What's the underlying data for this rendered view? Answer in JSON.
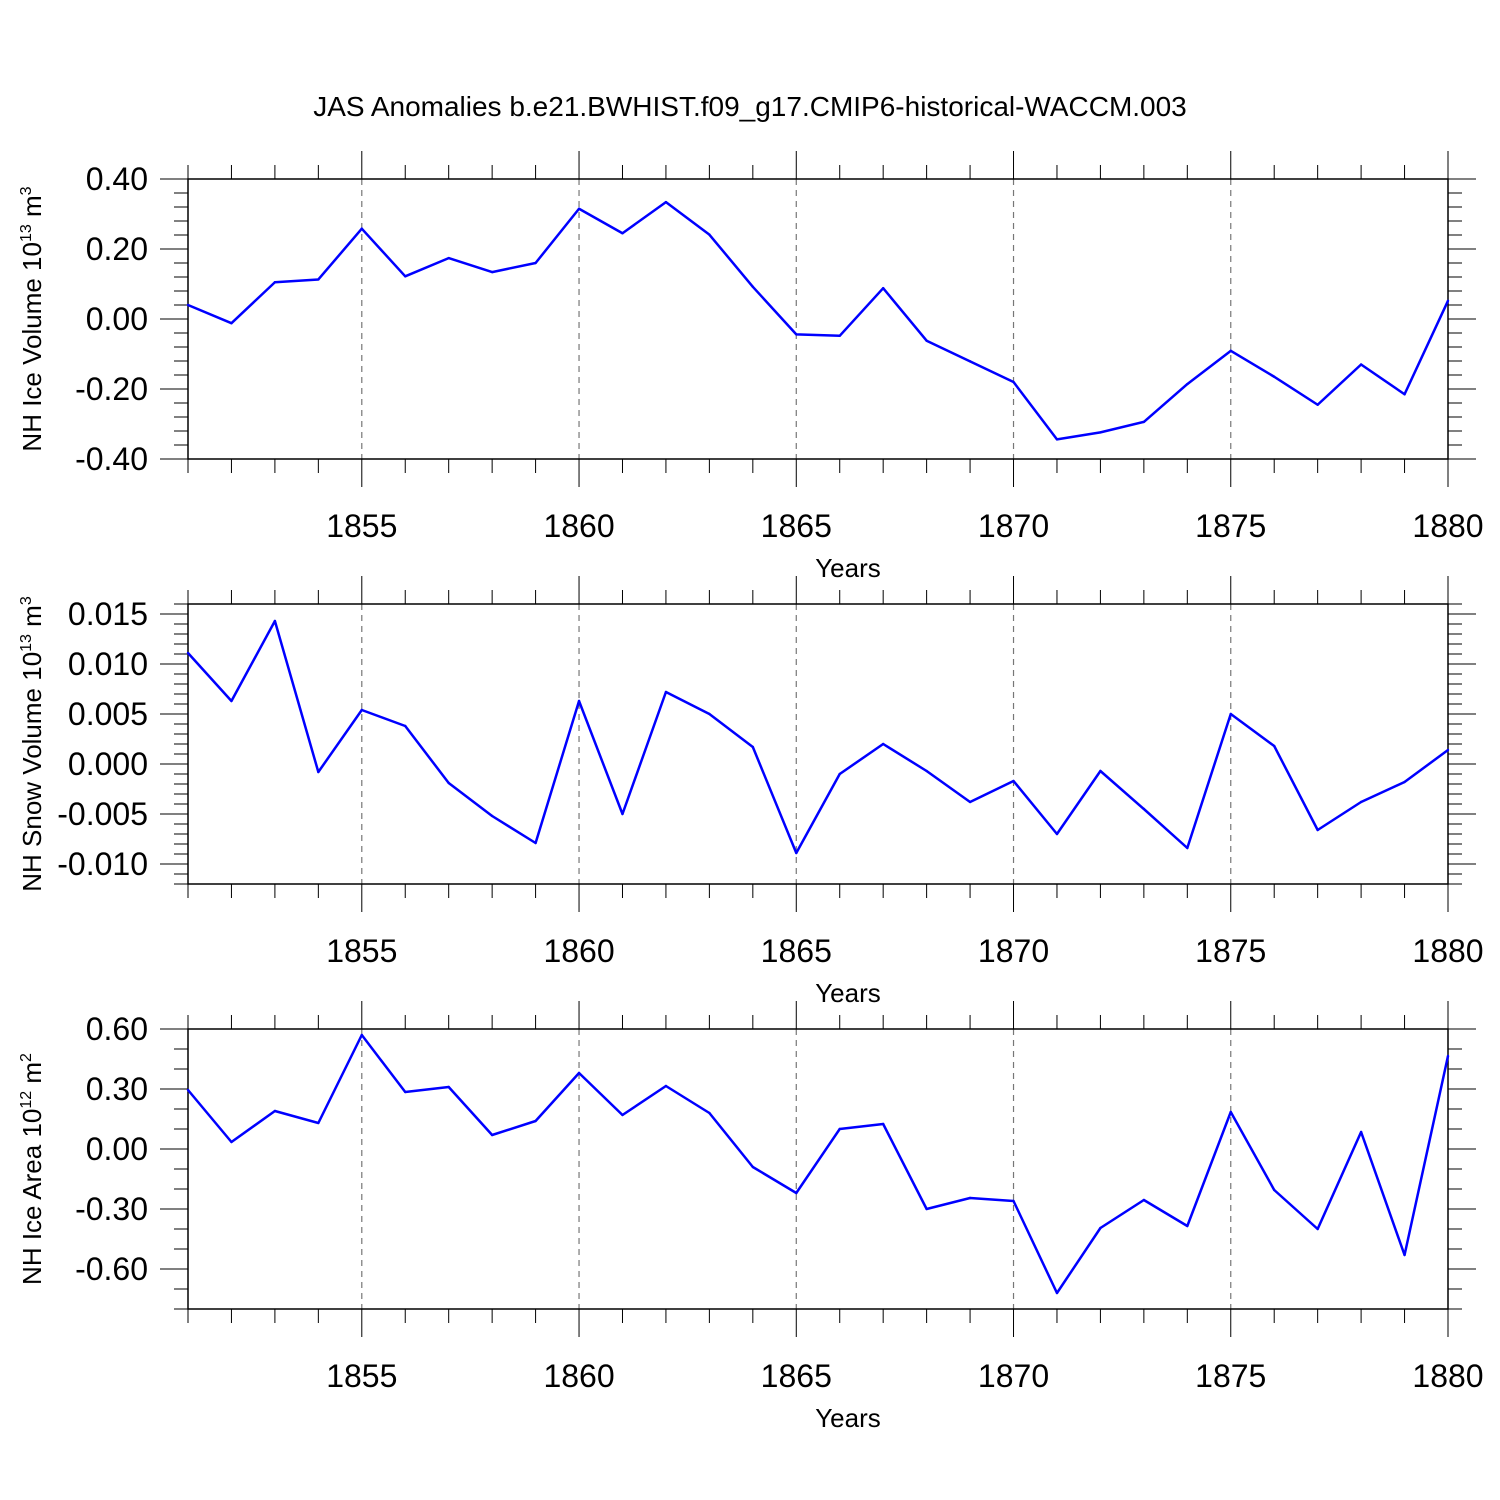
{
  "title": "JAS Anomalies b.e21.BWHIST.f09_g17.CMIP6-historical-WACCM.003",
  "chart_data": [
    {
      "type": "line",
      "ylabel_text": "NH Ice Volume 10",
      "ylabel_exp": "13",
      "ylabel_unit": " m",
      "ylabel_unit_exp": "3",
      "xlabel": "Years",
      "xlim": [
        1851,
        1880
      ],
      "ylim": [
        -0.4,
        0.4
      ],
      "yticks": [
        0.4,
        0.2,
        0.0,
        -0.2,
        -0.4
      ],
      "ytick_labels": [
        "0.40",
        "0.20",
        "0.00",
        "-0.20",
        "-0.40"
      ],
      "yminor": 0.04,
      "xticks": [
        1855,
        1860,
        1865,
        1870,
        1875,
        1880
      ],
      "xtick_labels": [
        "1855",
        "1860",
        "1865",
        "1870",
        "1875",
        "1880"
      ],
      "grid": "dashed vertical at major years",
      "series": [
        {
          "name": "NH Ice Volume",
          "color": "#0000ff",
          "x": [
            1851,
            1852,
            1853,
            1854,
            1855,
            1856,
            1857,
            1858,
            1859,
            1860,
            1861,
            1862,
            1863,
            1864,
            1865,
            1866,
            1867,
            1868,
            1869,
            1870,
            1871,
            1872,
            1873,
            1874,
            1875,
            1876,
            1877,
            1878,
            1879,
            1880
          ],
          "values": [
            0.04,
            -0.012,
            0.105,
            0.113,
            0.258,
            0.122,
            0.174,
            0.134,
            0.16,
            0.315,
            0.245,
            0.334,
            0.241,
            0.092,
            -0.044,
            -0.048,
            0.088,
            -0.062,
            -0.121,
            -0.18,
            -0.344,
            -0.324,
            -0.294,
            -0.186,
            -0.091,
            -0.165,
            -0.245,
            -0.13,
            -0.215,
            0.052
          ]
        }
      ]
    },
    {
      "type": "line",
      "ylabel_text": "NH Snow Volume 10",
      "ylabel_exp": "13",
      "ylabel_unit": " m",
      "ylabel_unit_exp": "3",
      "xlabel": "Years",
      "xlim": [
        1851,
        1880
      ],
      "ylim": [
        -0.012,
        0.016
      ],
      "yticks": [
        0.015,
        0.01,
        0.005,
        0.0,
        -0.005,
        -0.01
      ],
      "ytick_labels": [
        "0.015",
        "0.010",
        "0.005",
        "0.000",
        "-0.005",
        "-0.010"
      ],
      "yminor": 0.001,
      "xticks": [
        1855,
        1860,
        1865,
        1870,
        1875,
        1880
      ],
      "xtick_labels": [
        "1855",
        "1860",
        "1865",
        "1870",
        "1875",
        "1880"
      ],
      "grid": "dashed vertical at major years",
      "series": [
        {
          "name": "NH Snow Volume",
          "color": "#0000ff",
          "x": [
            1851,
            1852,
            1853,
            1854,
            1855,
            1856,
            1857,
            1858,
            1859,
            1860,
            1861,
            1862,
            1863,
            1864,
            1865,
            1866,
            1867,
            1868,
            1869,
            1870,
            1871,
            1872,
            1873,
            1874,
            1875,
            1876,
            1877,
            1878,
            1879,
            1880
          ],
          "values": [
            0.0111,
            0.0063,
            0.0143,
            -0.0008,
            0.0054,
            0.0038,
            -0.0019,
            -0.0052,
            -0.0079,
            0.0063,
            -0.005,
            0.0072,
            0.005,
            0.0017,
            -0.0089,
            -0.001,
            0.002,
            -0.0007,
            -0.0038,
            -0.0017,
            -0.007,
            -0.0007,
            -0.0045,
            -0.0084,
            0.005,
            0.0018,
            -0.0066,
            -0.0038,
            -0.0018,
            0.0014
          ]
        }
      ]
    },
    {
      "type": "line",
      "ylabel_text": "NH Ice Area 10",
      "ylabel_exp": "12",
      "ylabel_unit": " m",
      "ylabel_unit_exp": "2",
      "xlabel": "Years",
      "xlim": [
        1851,
        1880
      ],
      "ylim": [
        -0.8,
        0.6
      ],
      "yticks": [
        0.6,
        0.3,
        0.0,
        -0.3,
        -0.6
      ],
      "ytick_labels": [
        "0.60",
        "0.30",
        "0.00",
        "-0.30",
        "-0.60"
      ],
      "yminor": 0.1,
      "xticks": [
        1855,
        1860,
        1865,
        1870,
        1875,
        1880
      ],
      "xtick_labels": [
        "1855",
        "1860",
        "1865",
        "1870",
        "1875",
        "1880"
      ],
      "grid": "dashed vertical at major years",
      "series": [
        {
          "name": "NH Ice Area",
          "color": "#0000ff",
          "x": [
            1851,
            1852,
            1853,
            1854,
            1855,
            1856,
            1857,
            1858,
            1859,
            1860,
            1861,
            1862,
            1863,
            1864,
            1865,
            1866,
            1867,
            1868,
            1869,
            1870,
            1871,
            1872,
            1873,
            1874,
            1875,
            1876,
            1877,
            1878,
            1879,
            1880
          ],
          "values": [
            0.295,
            0.035,
            0.19,
            0.13,
            0.57,
            0.285,
            0.31,
            0.07,
            0.14,
            0.38,
            0.17,
            0.315,
            0.18,
            -0.09,
            -0.22,
            0.1,
            0.125,
            -0.3,
            -0.245,
            -0.26,
            -0.72,
            -0.395,
            -0.255,
            -0.385,
            0.185,
            -0.205,
            -0.4,
            0.085,
            -0.53,
            0.465
          ]
        }
      ]
    }
  ]
}
